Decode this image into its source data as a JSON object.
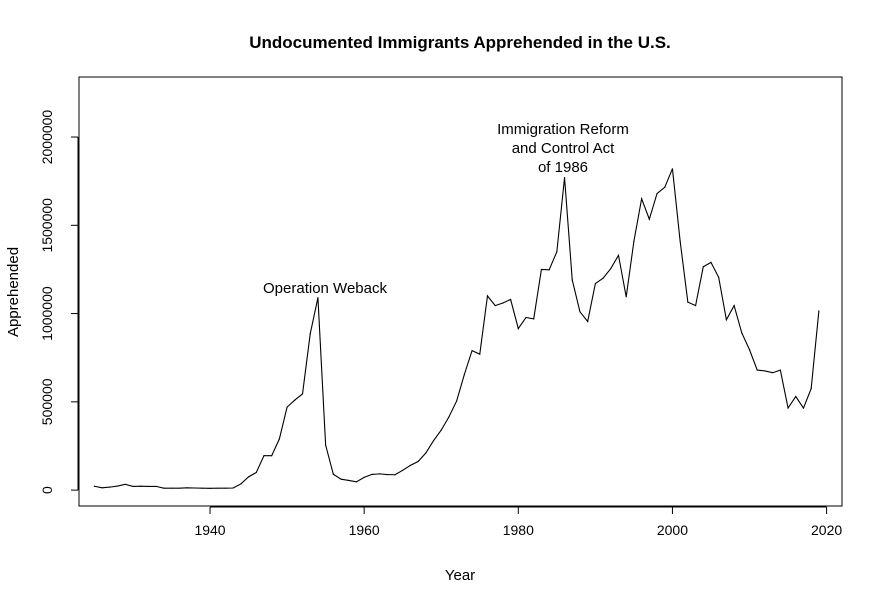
{
  "chart_data": {
    "type": "line",
    "title": "Undocumented Immigrants Apprehended in the U.S.",
    "xlabel": "Year",
    "ylabel": "Apprehended",
    "xlim": [
      1923,
      2022
    ],
    "ylim": [
      -90000,
      2340000
    ],
    "x_ticks": [
      1940,
      1960,
      1980,
      2000,
      2020
    ],
    "x_tick_labels": [
      "1940",
      "1960",
      "1980",
      "2000",
      "2020"
    ],
    "y_ticks": [
      0,
      500000,
      1000000,
      1500000,
      2000000
    ],
    "y_tick_labels": [
      "0",
      "500000",
      "1000000",
      "1500000",
      "2000000"
    ],
    "grid": false,
    "line_color": "#000000",
    "series": [
      {
        "x": [
          1925,
          1926,
          1927,
          1928,
          1929,
          1930,
          1931,
          1932,
          1933,
          1934,
          1935,
          1936,
          1937,
          1938,
          1939,
          1940,
          1941,
          1942,
          1943,
          1944,
          1945,
          1946,
          1947,
          1948,
          1949,
          1950,
          1951,
          1952,
          1953,
          1954,
          1955,
          1956,
          1957,
          1958,
          1959,
          1960,
          1961,
          1962,
          1963,
          1964,
          1965,
          1966,
          1967,
          1968,
          1969,
          1970,
          1971,
          1972,
          1973,
          1974,
          1975,
          1976,
          1977,
          1978,
          1979,
          1980,
          1981,
          1982,
          1983,
          1984,
          1985,
          1986,
          1987,
          1988,
          1989,
          1990,
          1991,
          1992,
          1993,
          1994,
          1995,
          1996,
          1997,
          1998,
          1999,
          2000,
          2001,
          2002,
          2003,
          2004,
          2005,
          2006,
          2007,
          2008,
          2009,
          2010,
          2011,
          2012,
          2013,
          2014,
          2015,
          2016,
          2017,
          2018,
          2019
        ],
        "y": [
          22000,
          13000,
          17000,
          23000,
          33000,
          21000,
          22000,
          21000,
          21000,
          11000,
          11000,
          11000,
          13000,
          12000,
          11000,
          10000,
          11000,
          11000,
          12000,
          35000,
          75000,
          100000,
          195000,
          195000,
          290000,
          470000,
          510000,
          545000,
          885000,
          1090000,
          255000,
          90000,
          62000,
          55000,
          47000,
          72000,
          89000,
          92000,
          88000,
          87000,
          112000,
          140000,
          162000,
          210000,
          280000,
          340000,
          415000,
          505000,
          655000,
          790000,
          770000,
          1100000,
          1045000,
          1060000,
          1080000,
          915000,
          978000,
          970000,
          1250000,
          1248000,
          1350000,
          1770000,
          1190000,
          1010000,
          955000,
          1170000,
          1200000,
          1255000,
          1330000,
          1095000,
          1410000,
          1650000,
          1535000,
          1680000,
          1715000,
          1820000,
          1410000,
          1065000,
          1045000,
          1265000,
          1290000,
          1205000,
          965000,
          1045000,
          890000,
          795000,
          680000,
          675000,
          665000,
          680000,
          465000,
          530000,
          465000,
          575000,
          1015000
        ]
      }
    ],
    "annotations": [
      {
        "lines": [
          "Operation Weback"
        ]
      },
      {
        "lines": [
          "Immigration Reform",
          "and Control Act",
          "of 1986"
        ]
      }
    ]
  }
}
